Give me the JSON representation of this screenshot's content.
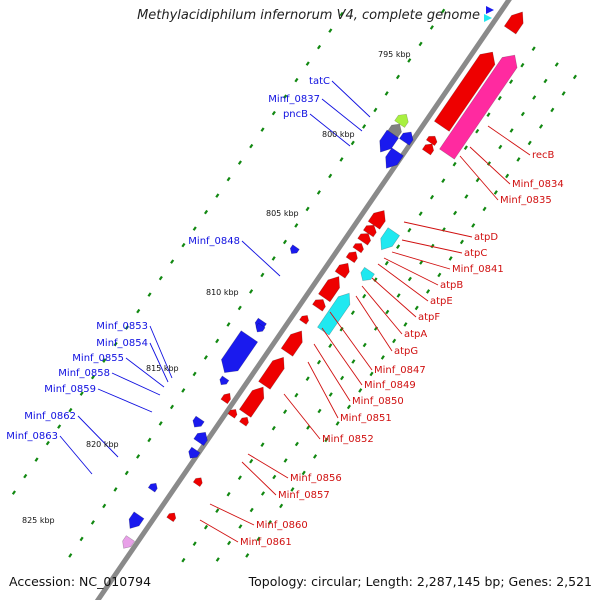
{
  "title": "Methylacidiphilum infernorum V4, complete genome",
  "accession": "Accession: NC_010794",
  "summary": "Topology: circular; Length: 2,287,145 bp; Genes: 2,521",
  "colors": {
    "forward_cds": "#ee0000",
    "reverse_cds": "#1a1aee",
    "rna": "#20e8f0",
    "pink": "#ff2aa0",
    "lime": "#a8f040",
    "gray": "#808080",
    "backbone": "#8a8a8a",
    "tick": "#118811",
    "blue_label": "#1010e0",
    "red_label": "#d01010"
  },
  "kbp_labels": [
    "795 kbp",
    "800 kbp",
    "805 kbp",
    "810 kbp",
    "815 kbp",
    "820 kbp",
    "825 kbp"
  ],
  "left_labels": [
    "tatC",
    "Minf_0837",
    "pncB",
    "Minf_0848",
    "Minf_0853",
    "Minf_0854",
    "Minf_0855",
    "Minf_0858",
    "Minf_0859",
    "Minf_0862",
    "Minf_0863"
  ],
  "right_labels": [
    "recB",
    "Minf_0834",
    "Minf_0835",
    "atpD",
    "atpC",
    "Minf_0841",
    "atpB",
    "atpE",
    "atpF",
    "atpA",
    "atpG",
    "Minf_0847",
    "Minf_0849",
    "Minf_0850",
    "Minf_0851",
    "Minf_0852",
    "Minf_0856",
    "Minf_0857",
    "Minf_0860",
    "Minf_0861"
  ]
}
